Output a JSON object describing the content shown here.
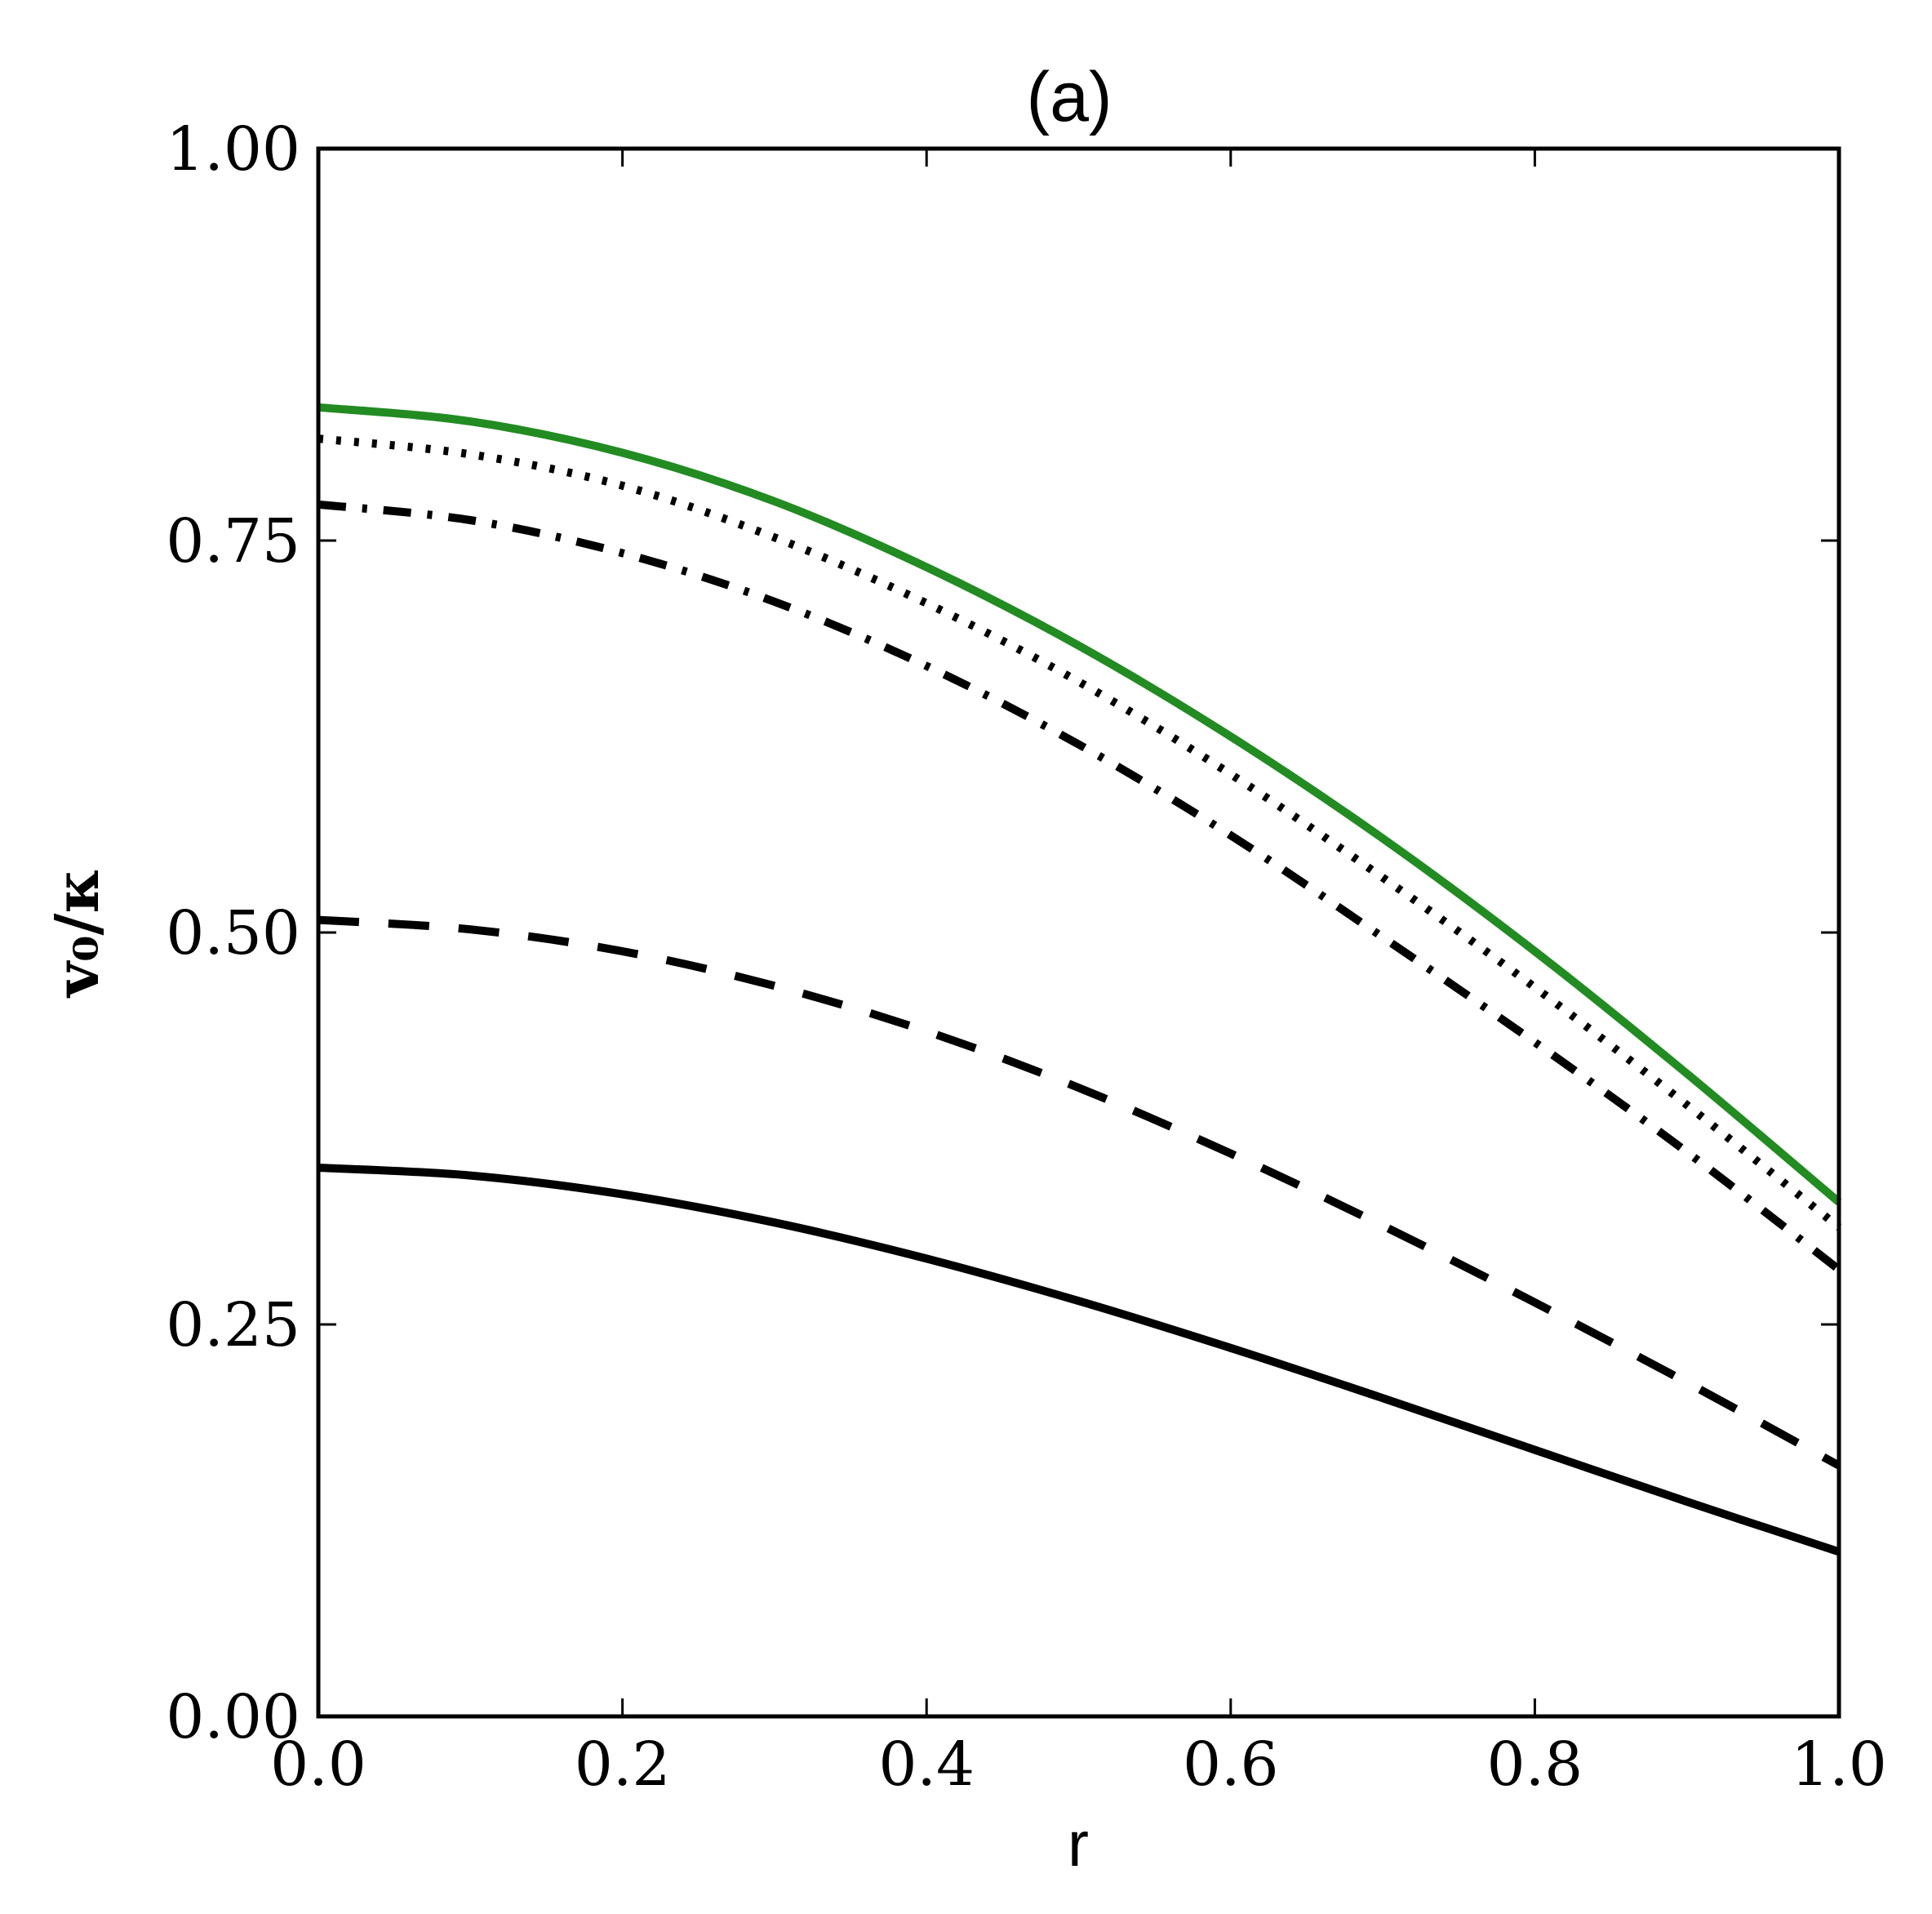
{
  "chart_data": {
    "type": "line",
    "title": "(a)",
    "xlabel": "r",
    "ylabel": "v₀/κ",
    "xlim": [
      0.0,
      1.0
    ],
    "ylim": [
      0.0,
      1.0
    ],
    "xticks": [
      "0.0",
      "0.2",
      "0.4",
      "0.6",
      "0.8",
      "1.0"
    ],
    "yticks": [
      "0.00",
      "0.25",
      "0.50",
      "0.75",
      "1.00"
    ],
    "grid": false,
    "legend": "none",
    "series": [
      {
        "style": "solid",
        "color": "#228b22",
        "x": [
          0.0,
          0.1,
          0.2,
          0.3,
          0.4,
          0.5,
          0.6,
          0.7,
          0.8,
          0.9,
          1.0
        ],
        "y": [
          0.835,
          0.826,
          0.806,
          0.775,
          0.733,
          0.683,
          0.625,
          0.56,
          0.488,
          0.41,
          0.328
        ]
      },
      {
        "style": "dotted",
        "color": "#000000",
        "x": [
          0.0,
          0.1,
          0.2,
          0.3,
          0.4,
          0.5,
          0.6,
          0.7,
          0.8,
          0.9,
          1.0
        ],
        "y": [
          0.815,
          0.805,
          0.785,
          0.752,
          0.71,
          0.66,
          0.601,
          0.535,
          0.465,
          0.39,
          0.312
        ]
      },
      {
        "style": "dashdot",
        "color": "#000000",
        "x": [
          0.0,
          0.1,
          0.2,
          0.3,
          0.4,
          0.5,
          0.6,
          0.7,
          0.8,
          0.9,
          1.0
        ],
        "y": [
          0.773,
          0.763,
          0.742,
          0.711,
          0.67,
          0.62,
          0.562,
          0.497,
          0.43,
          0.36,
          0.285
        ]
      },
      {
        "style": "dashed",
        "color": "#000000",
        "x": [
          0.0,
          0.1,
          0.2,
          0.3,
          0.4,
          0.5,
          0.6,
          0.7,
          0.8,
          0.9,
          1.0
        ],
        "y": [
          0.508,
          0.502,
          0.488,
          0.466,
          0.437,
          0.401,
          0.359,
          0.313,
          0.264,
          0.213,
          0.16
        ]
      },
      {
        "style": "solid",
        "color": "#000000",
        "x": [
          0.0,
          0.1,
          0.2,
          0.3,
          0.4,
          0.5,
          0.6,
          0.7,
          0.8,
          0.9,
          1.0
        ],
        "y": [
          0.35,
          0.345,
          0.333,
          0.315,
          0.292,
          0.265,
          0.235,
          0.203,
          0.17,
          0.137,
          0.105
        ]
      }
    ]
  }
}
